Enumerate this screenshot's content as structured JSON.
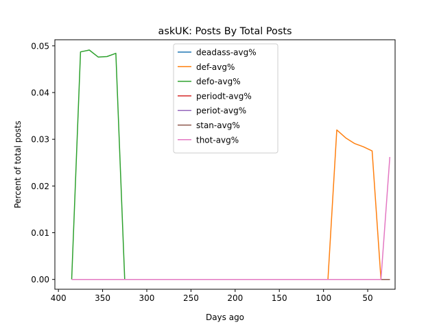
{
  "chart_data": {
    "type": "line",
    "title": "askUK: Posts By Total Posts",
    "xlabel": "Days ago",
    "ylabel": "Percent of total posts",
    "xlim": [
      404,
      19
    ],
    "ylim": [
      -0.0021,
      0.0513
    ],
    "x_inverted": true,
    "xticks": [
      400,
      350,
      300,
      250,
      200,
      150,
      100,
      50
    ],
    "yticks": [
      0.0,
      0.01,
      0.02,
      0.03,
      0.04,
      0.05
    ],
    "ytick_labels": [
      "0.00",
      "0.01",
      "0.02",
      "0.03",
      "0.04",
      "0.05"
    ],
    "grid": false,
    "legend_position": "top-center",
    "series": [
      {
        "name": "deadass-avg%",
        "color": "#1f77b4",
        "x": [
          385,
          25
        ],
        "y": [
          0,
          0
        ]
      },
      {
        "name": "def-avg%",
        "color": "#ff7f0e",
        "x": [
          385,
          95,
          85,
          75,
          65,
          55,
          45,
          35,
          25
        ],
        "y": [
          0,
          0,
          0.032,
          0.0303,
          0.0291,
          0.0284,
          0.0275,
          0,
          0
        ]
      },
      {
        "name": "defo-avg%",
        "color": "#2ca02c",
        "x": [
          385,
          375,
          365,
          355,
          345,
          335,
          325,
          25
        ],
        "y": [
          0,
          0.0487,
          0.0491,
          0.0476,
          0.0477,
          0.0484,
          0,
          0
        ]
      },
      {
        "name": "periodt-avg%",
        "color": "#d62728",
        "x": [
          385,
          25
        ],
        "y": [
          0,
          0
        ]
      },
      {
        "name": "periot-avg%",
        "color": "#9467bd",
        "x": [
          385,
          25
        ],
        "y": [
          0,
          0
        ]
      },
      {
        "name": "stan-avg%",
        "color": "#8c564b",
        "x": [
          385,
          25
        ],
        "y": [
          0,
          0
        ]
      },
      {
        "name": "thot-avg%",
        "color": "#e377c2",
        "x": [
          385,
          35,
          25
        ],
        "y": [
          0,
          0,
          0.0262
        ]
      }
    ]
  }
}
